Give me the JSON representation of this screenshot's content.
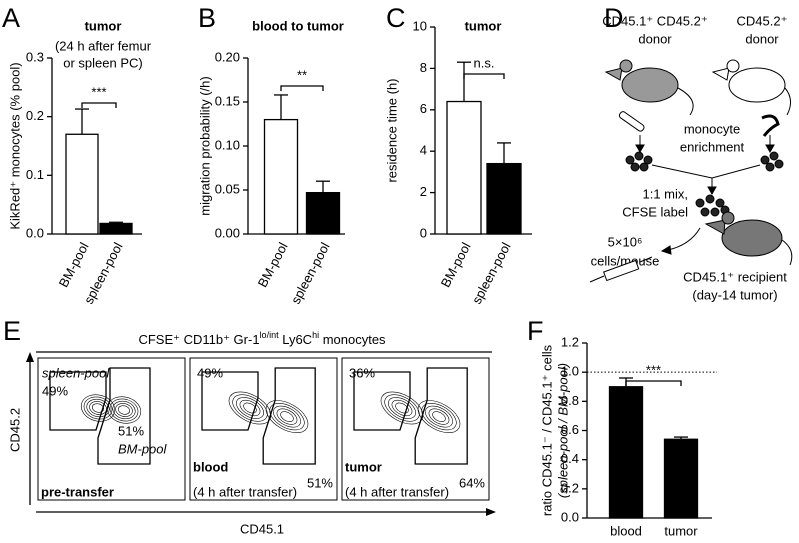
{
  "chart_data": [
    {
      "type": "bar",
      "panel": "A",
      "title": "tumor",
      "subtitle": [
        "(24 h after femur",
        "or spleen PC)"
      ],
      "ylabel": [
        "KikRed⁺ monocytes (% pool)"
      ],
      "categories": [
        "BM-pool",
        "spleen-pool"
      ],
      "values": [
        0.17,
        0.018
      ],
      "errors": [
        0.043,
        0.002
      ],
      "colors": [
        "#ffffff",
        "#000000"
      ],
      "ylim": [
        0,
        0.3
      ],
      "yticks": [
        {
          "value": 0,
          "label": "0.0"
        },
        0.1,
        0.2,
        0.3
      ],
      "significance": "***"
    },
    {
      "type": "bar",
      "panel": "B",
      "title": "blood to tumor",
      "ylabel": [
        "migration probability (/h)"
      ],
      "categories": [
        "BM-pool",
        "spleen-pool"
      ],
      "values": [
        0.13,
        0.047
      ],
      "errors": [
        0.028,
        0.013
      ],
      "colors": [
        "#ffffff",
        "#000000"
      ],
      "ylim": [
        0,
        0.2
      ],
      "yticks": [
        {
          "value": 0,
          "label": "0.00"
        },
        0.05,
        {
          "value": 0.1,
          "label": "0.10"
        },
        0.15,
        {
          "value": 0.2,
          "label": "0.20"
        }
      ],
      "significance": "**"
    },
    {
      "type": "bar",
      "panel": "C",
      "title": "tumor",
      "ylabel": [
        "residence time (h)"
      ],
      "categories": [
        "BM-pool",
        "spleen-pool"
      ],
      "values": [
        6.4,
        3.4
      ],
      "errors": [
        1.9,
        1.0
      ],
      "colors": [
        "#ffffff",
        "#000000"
      ],
      "ylim": [
        0,
        10
      ],
      "yticks": [
        0,
        2,
        4,
        6,
        8,
        10
      ],
      "significance": "n.s."
    },
    {
      "type": "bar",
      "panel": "F",
      "ylabel": [
        "ratio CD45.1⁻ / CD45.1⁺ cells",
        "(spleen-pool / BM-pool)"
      ],
      "categories": [
        "blood",
        "tumor"
      ],
      "values": [
        0.9,
        0.54
      ],
      "errors": [
        0.06,
        0.015
      ],
      "colors": [
        "#000000",
        "#000000"
      ],
      "ylim": [
        0,
        1.2
      ],
      "yticks": [
        {
          "value": 0,
          "label": "0.0"
        },
        0.2,
        0.4,
        0.6,
        0.8,
        {
          "value": 1,
          "label": "1.0"
        },
        1.2
      ],
      "reference_line": 1.0,
      "significance": "***"
    }
  ],
  "diagram": {
    "panel": "D",
    "donor1": [
      "CD45.1⁺ CD45.2⁺",
      "donor"
    ],
    "donor2": [
      "CD45.2⁺",
      "donor"
    ],
    "enrichment": [
      "monocyte",
      "enrichment"
    ],
    "mix": [
      "1:1 mix,",
      "CFSE label"
    ],
    "dose": [
      "5×10⁶",
      "cells/mouse"
    ],
    "recipient": [
      "CD45.1⁺ recipient",
      "(day-14 tumor)"
    ]
  },
  "flow": {
    "panel": "E",
    "title": [
      "CFSE⁺ CD11b⁺ Gr-1",
      "lo/int",
      " Ly6C",
      "hi",
      " monocytes"
    ],
    "ylabel": "CD45.2",
    "xlabel": "CD45.1",
    "plots": [
      {
        "upper": "49%",
        "lower": "51%",
        "upper_name": "spleen-pool",
        "lower_name": "BM-pool",
        "caption": [
          "pre-transfer"
        ]
      },
      {
        "upper": "49%",
        "lower": "51%",
        "caption": [
          "blood",
          "(4 h after transfer)"
        ]
      },
      {
        "upper": "36%",
        "lower": "64%",
        "caption": [
          "tumor",
          "(4 h after transfer)"
        ]
      }
    ]
  }
}
